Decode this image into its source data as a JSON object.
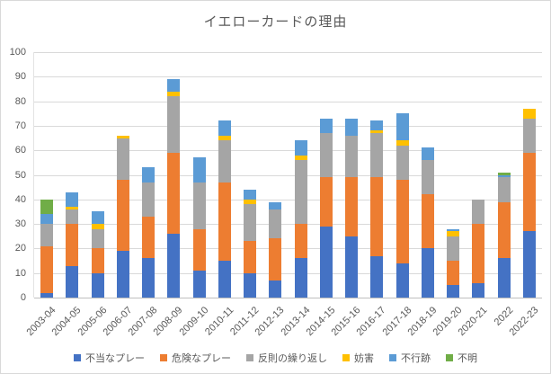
{
  "window": {
    "background": "#FFFFFF",
    "border_color": "#D9D9D9",
    "text_color": "#595959",
    "gridline_color": "#D9D9D9"
  },
  "chart_data": {
    "type": "bar",
    "stacked": true,
    "title": "イエローカードの理由",
    "xlabel": "",
    "ylabel": "",
    "ylim": [
      0,
      100
    ],
    "yticks": [
      0,
      10,
      20,
      30,
      40,
      50,
      60,
      70,
      80,
      90,
      100
    ],
    "grid": true,
    "legend_position": "bottom",
    "categories": [
      "2003-04",
      "2004-05",
      "2005-06",
      "2006-07",
      "2007-08",
      "2008-09",
      "2009-10",
      "2010-11",
      "2011-12",
      "2012-13",
      "2013-14",
      "2014-15",
      "2015-16",
      "2016-17",
      "2017-18",
      "2018-19",
      "2019-20",
      "2020-21",
      "2022",
      "2022-23"
    ],
    "series": [
      {
        "name": "不当なプレー",
        "color": "#4472C4",
        "values": [
          2,
          13,
          10,
          19,
          16,
          26,
          11,
          15,
          10,
          7,
          16,
          29,
          25,
          17,
          14,
          20,
          5,
          6,
          16,
          27
        ]
      },
      {
        "name": "危険なプレー",
        "color": "#ED7D31",
        "values": [
          19,
          17,
          10,
          29,
          17,
          33,
          17,
          32,
          13,
          17,
          14,
          20,
          24,
          32,
          34,
          22,
          10,
          24,
          23,
          32
        ]
      },
      {
        "name": "反則の繰り返し",
        "color": "#A5A5A5",
        "values": [
          9,
          6,
          8,
          17,
          14,
          23,
          19,
          17,
          15,
          12,
          26,
          18,
          17,
          18,
          14,
          14,
          10,
          10,
          10,
          14
        ]
      },
      {
        "name": "妨害",
        "color": "#FFC000",
        "values": [
          0,
          1,
          2,
          1,
          0,
          2,
          0,
          2,
          2,
          0,
          2,
          0,
          0,
          1,
          2,
          0,
          2,
          0,
          0,
          4
        ]
      },
      {
        "name": "不行跡",
        "color": "#5B9BD5",
        "values": [
          4,
          6,
          5,
          0,
          6,
          5,
          10,
          6,
          4,
          3,
          6,
          6,
          7,
          4,
          11,
          5,
          1,
          0,
          1,
          0
        ]
      },
      {
        "name": "不明",
        "color": "#70AD47",
        "values": [
          6,
          0,
          0,
          0,
          0,
          0,
          0,
          0,
          0,
          0,
          0,
          0,
          0,
          0,
          0,
          0,
          0,
          0,
          1,
          0
        ]
      }
    ],
    "totals": [
      40,
      43,
      35,
      66,
      53,
      89,
      57,
      72,
      44,
      39,
      64,
      73,
      73,
      72,
      75,
      61,
      28,
      40,
      51,
      77
    ]
  }
}
